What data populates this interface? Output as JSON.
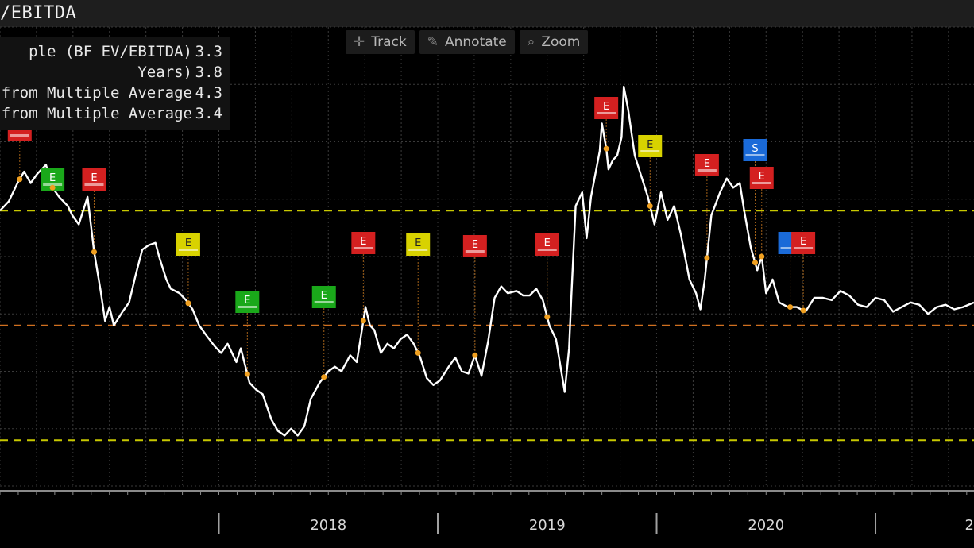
{
  "title": "/EBITDA",
  "legend": [
    {
      "label": "ple (BF EV/EBITDA)",
      "value": "3.3"
    },
    {
      "label": " Years)",
      "value": "3.8"
    },
    {
      "label": "on from Multiple Average",
      "value": "4.3"
    },
    {
      "label": "on from Multiple Average",
      "value": "3.4"
    }
  ],
  "toolbar": {
    "track_label": "Track",
    "track_icon": "plus-icon",
    "annotate_label": "Annotate",
    "annotate_icon": "pencil-icon",
    "zoom_label": "Zoom",
    "zoom_icon": "magnifier-icon"
  },
  "chart_data": {
    "type": "line",
    "x_axis_labels": [
      {
        "label": "2018",
        "x": 2018.5
      },
      {
        "label": "2019",
        "x": 2019.5
      },
      {
        "label": "2020",
        "x": 2020.5
      },
      {
        "label": "2",
        "x": 2021.45
      }
    ],
    "xlim": [
      2017.0,
      2021.45
    ],
    "ylim": [
      2.6,
      4.6
    ],
    "grid": true,
    "series": [
      {
        "color": "#ffffff",
        "points": [
          [
            2017.0,
            3.8
          ],
          [
            2017.04,
            3.84
          ],
          [
            2017.08,
            3.92
          ],
          [
            2017.11,
            3.97
          ],
          [
            2017.14,
            3.92
          ],
          [
            2017.17,
            3.96
          ],
          [
            2017.21,
            4.0
          ],
          [
            2017.24,
            3.9
          ],
          [
            2017.27,
            3.86
          ],
          [
            2017.31,
            3.82
          ],
          [
            2017.33,
            3.78
          ],
          [
            2017.36,
            3.74
          ],
          [
            2017.38,
            3.8
          ],
          [
            2017.4,
            3.86
          ],
          [
            2017.43,
            3.62
          ],
          [
            2017.46,
            3.45
          ],
          [
            2017.48,
            3.32
          ],
          [
            2017.5,
            3.38
          ],
          [
            2017.52,
            3.3
          ],
          [
            2017.56,
            3.36
          ],
          [
            2017.59,
            3.4
          ],
          [
            2017.62,
            3.52
          ],
          [
            2017.65,
            3.63
          ],
          [
            2017.68,
            3.65
          ],
          [
            2017.71,
            3.66
          ],
          [
            2017.73,
            3.59
          ],
          [
            2017.76,
            3.5
          ],
          [
            2017.78,
            3.46
          ],
          [
            2017.82,
            3.44
          ],
          [
            2017.85,
            3.41
          ],
          [
            2017.88,
            3.37
          ],
          [
            2017.91,
            3.3
          ],
          [
            2017.94,
            3.26
          ],
          [
            2017.98,
            3.21
          ],
          [
            2018.01,
            3.18
          ],
          [
            2018.04,
            3.22
          ],
          [
            2018.08,
            3.14
          ],
          [
            2018.1,
            3.2
          ],
          [
            2018.14,
            3.05
          ],
          [
            2018.17,
            3.02
          ],
          [
            2018.2,
            3.0
          ],
          [
            2018.24,
            2.89
          ],
          [
            2018.27,
            2.84
          ],
          [
            2018.3,
            2.82
          ],
          [
            2018.33,
            2.85
          ],
          [
            2018.36,
            2.82
          ],
          [
            2018.39,
            2.86
          ],
          [
            2018.42,
            2.98
          ],
          [
            2018.46,
            3.05
          ],
          [
            2018.5,
            3.1
          ],
          [
            2018.53,
            3.12
          ],
          [
            2018.56,
            3.1
          ],
          [
            2018.6,
            3.17
          ],
          [
            2018.63,
            3.14
          ],
          [
            2018.65,
            3.26
          ],
          [
            2018.67,
            3.38
          ],
          [
            2018.69,
            3.3
          ],
          [
            2018.71,
            3.28
          ],
          [
            2018.74,
            3.18
          ],
          [
            2018.77,
            3.22
          ],
          [
            2018.8,
            3.2
          ],
          [
            2018.83,
            3.24
          ],
          [
            2018.86,
            3.26
          ],
          [
            2018.89,
            3.22
          ],
          [
            2018.92,
            3.16
          ],
          [
            2018.95,
            3.07
          ],
          [
            2018.98,
            3.04
          ],
          [
            2019.01,
            3.06
          ],
          [
            2019.05,
            3.12
          ],
          [
            2019.08,
            3.16
          ],
          [
            2019.11,
            3.1
          ],
          [
            2019.14,
            3.09
          ],
          [
            2019.17,
            3.17
          ],
          [
            2019.2,
            3.08
          ],
          [
            2019.23,
            3.23
          ],
          [
            2019.26,
            3.42
          ],
          [
            2019.29,
            3.47
          ],
          [
            2019.32,
            3.44
          ],
          [
            2019.36,
            3.45
          ],
          [
            2019.39,
            3.43
          ],
          [
            2019.42,
            3.43
          ],
          [
            2019.45,
            3.46
          ],
          [
            2019.48,
            3.41
          ],
          [
            2019.51,
            3.3
          ],
          [
            2019.54,
            3.24
          ],
          [
            2019.58,
            3.01
          ],
          [
            2019.6,
            3.2
          ],
          [
            2019.61,
            3.42
          ],
          [
            2019.63,
            3.82
          ],
          [
            2019.66,
            3.88
          ],
          [
            2019.68,
            3.68
          ],
          [
            2019.7,
            3.86
          ],
          [
            2019.72,
            3.96
          ],
          [
            2019.74,
            4.06
          ],
          [
            2019.75,
            4.18
          ],
          [
            2019.77,
            4.07
          ],
          [
            2019.78,
            3.98
          ],
          [
            2019.8,
            4.02
          ],
          [
            2019.82,
            4.04
          ],
          [
            2019.84,
            4.12
          ],
          [
            2019.85,
            4.34
          ],
          [
            2019.87,
            4.24
          ],
          [
            2019.9,
            4.04
          ],
          [
            2019.93,
            3.95
          ],
          [
            2019.96,
            3.86
          ],
          [
            2019.99,
            3.74
          ],
          [
            2020.02,
            3.88
          ],
          [
            2020.05,
            3.76
          ],
          [
            2020.08,
            3.82
          ],
          [
            2020.11,
            3.7
          ],
          [
            2020.15,
            3.5
          ],
          [
            2020.18,
            3.44
          ],
          [
            2020.2,
            3.37
          ],
          [
            2020.22,
            3.5
          ],
          [
            2020.25,
            3.78
          ],
          [
            2020.29,
            3.88
          ],
          [
            2020.32,
            3.94
          ],
          [
            2020.35,
            3.9
          ],
          [
            2020.38,
            3.92
          ],
          [
            2020.4,
            3.8
          ],
          [
            2020.43,
            3.64
          ],
          [
            2020.46,
            3.54
          ],
          [
            2020.48,
            3.6
          ],
          [
            2020.5,
            3.44
          ],
          [
            2020.53,
            3.5
          ],
          [
            2020.56,
            3.4
          ],
          [
            2020.6,
            3.38
          ],
          [
            2020.64,
            3.38
          ],
          [
            2020.68,
            3.36
          ],
          [
            2020.72,
            3.42
          ],
          [
            2020.76,
            3.42
          ],
          [
            2020.8,
            3.41
          ],
          [
            2020.84,
            3.45
          ],
          [
            2020.88,
            3.43
          ],
          [
            2020.92,
            3.39
          ],
          [
            2020.96,
            3.38
          ],
          [
            2021.0,
            3.42
          ],
          [
            2021.04,
            3.41
          ],
          [
            2021.08,
            3.36
          ],
          [
            2021.12,
            3.38
          ],
          [
            2021.16,
            3.4
          ],
          [
            2021.2,
            3.39
          ],
          [
            2021.24,
            3.35
          ],
          [
            2021.28,
            3.38
          ],
          [
            2021.32,
            3.39
          ],
          [
            2021.36,
            3.37
          ],
          [
            2021.4,
            3.38
          ],
          [
            2021.45,
            3.4
          ]
        ]
      }
    ],
    "reference_lines": [
      {
        "y": 3.8,
        "color": "#c8c800",
        "dash": true
      },
      {
        "y": 3.3,
        "color": "#d07020",
        "dash": true
      },
      {
        "y": 2.8,
        "color": "#c8c800",
        "dash": true
      }
    ],
    "event_markers": [
      {
        "x": 2017.09,
        "letter": "",
        "color": "#d42020"
      },
      {
        "x": 2017.24,
        "letter": "E",
        "color": "#1aa81a"
      },
      {
        "x": 2017.43,
        "letter": "E",
        "color": "#d42020"
      },
      {
        "x": 2017.86,
        "letter": "E",
        "color": "#d8d200"
      },
      {
        "x": 2018.13,
        "letter": "E",
        "color": "#1aa81a"
      },
      {
        "x": 2018.48,
        "letter": "E",
        "color": "#1aa81a"
      },
      {
        "x": 2018.66,
        "letter": "E",
        "color": "#d42020"
      },
      {
        "x": 2018.91,
        "letter": "E",
        "color": "#d8d200"
      },
      {
        "x": 2019.17,
        "letter": "E",
        "color": "#d42020"
      },
      {
        "x": 2019.5,
        "letter": "E",
        "color": "#d42020"
      },
      {
        "x": 2019.77,
        "letter": "E",
        "color": "#d42020"
      },
      {
        "x": 2019.97,
        "letter": "E",
        "color": "#d8d200"
      },
      {
        "x": 2020.23,
        "letter": "E",
        "color": "#d42020"
      },
      {
        "x": 2020.45,
        "letter": "S",
        "color": "#1a6ad8"
      },
      {
        "x": 2020.48,
        "letter": "E",
        "color": "#d42020"
      },
      {
        "x": 2020.61,
        "letter": "",
        "color": "#1a6ad8"
      },
      {
        "x": 2020.67,
        "letter": "E",
        "color": "#d42020"
      }
    ]
  }
}
